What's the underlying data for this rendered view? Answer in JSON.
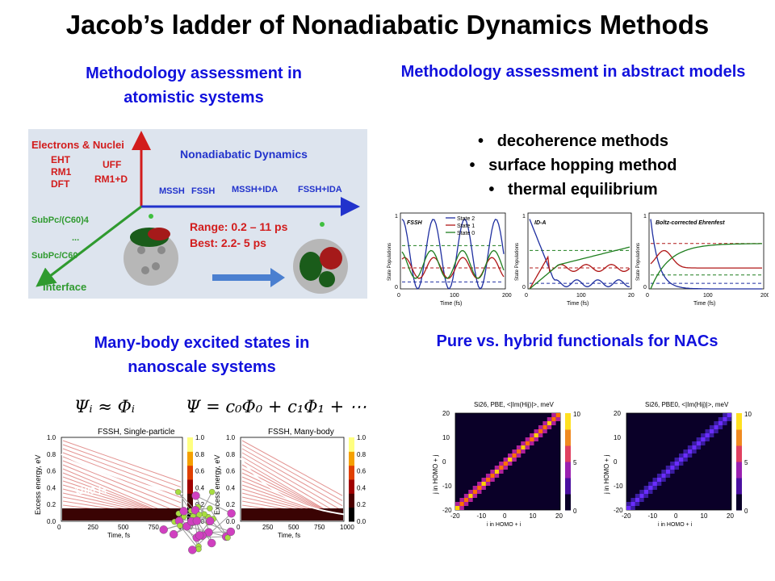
{
  "title": "Jacob’s ladder of Nonadiabatic Dynamics Methods",
  "sections": {
    "top_left": {
      "title": "Methodology assessment in atomistic systems"
    },
    "top_right": {
      "title": "Methodology assessment in abstract models",
      "bullets": [
        "decoherence methods",
        "surface hopping method",
        "thermal equilibrium"
      ]
    },
    "bottom_left": {
      "title": "Many-body excited states in nanoscale systems"
    },
    "bottom_right": {
      "title": "Pure vs. hybrid functionals for NACs"
    }
  },
  "ladder_diagram": {
    "y_axis_label": "Electrons & Nuclei",
    "x_axis_label": "Nonadiabatic Dynamics",
    "diag_axis_label": "Interface",
    "methods_left": [
      "EHT",
      "RM1",
      "DFT"
    ],
    "methods_right": [
      "UFF",
      "RM1+D"
    ],
    "interface_items": [
      "SubPc/(C60)4",
      "...",
      "SubPc/C60"
    ],
    "dynamics_items": [
      "MSSH",
      "FSSH",
      "MSSH+IDA",
      "FSSH+IDA"
    ],
    "range_text": "Range: 0.2 – 11 ps",
    "best_text": "Best: 2.2- 5 ps"
  },
  "population_plots": {
    "ylabel": "State Populations",
    "xlabel": "Time (fs)",
    "legend": [
      "State 2",
      "State 1",
      "State 0"
    ],
    "colors": {
      "state2": "#1f2fa0",
      "state1": "#b01818",
      "state0": "#1f7f1f"
    },
    "panels": [
      {
        "title": "FSSH",
        "xticks": [
          "0",
          "100",
          "200"
        ],
        "yticks": [
          "0",
          "1"
        ]
      },
      {
        "title": "ID-A",
        "xticks": [
          "0",
          "100",
          "20"
        ],
        "yticks": [
          "0",
          "1"
        ]
      },
      {
        "title": "Boltz-corrected Ehrenfest",
        "xticks": [
          "0",
          "100",
          "200"
        ],
        "yticks": [
          "0",
          "1"
        ]
      }
    ]
  },
  "equations": {
    "left": "Ψᵢ ≈ Φᵢ",
    "right": "Ψ = c₀Φ₀ + c₁Φ₁ + ⋯"
  },
  "energy_plots": {
    "ylabel": "Excess energy, eV",
    "xlabel": "Time, fs",
    "xticks": [
      "0",
      "250",
      "500",
      "750",
      "1000"
    ],
    "yticks": [
      "0.0",
      "0.2",
      "0.4",
      "0.6",
      "0.8",
      "1.0"
    ],
    "cbar_ticks": [
      "0.0",
      "0.2",
      "0.4",
      "0.6",
      "0.8",
      "1.0"
    ],
    "panels": [
      {
        "title": "FSSH, Single-particle",
        "time_label": "1100 fs"
      },
      {
        "title": "FSSH, Many-body",
        "time_label": "490 fs"
      }
    ]
  },
  "nac_maps": {
    "xlabel": "i in HOMO + i",
    "ylabel": "j in HOMO + j",
    "ticks": [
      "-20",
      "-10",
      "0",
      "10",
      "20"
    ],
    "cbar_ticks": [
      "10",
      "5",
      "0"
    ],
    "panels": [
      {
        "title": "Si26, PBE, <|Im(Hij)|>, meV"
      },
      {
        "title": "Si26, PBE0, <|Im(Hij)|>, meV"
      }
    ]
  }
}
